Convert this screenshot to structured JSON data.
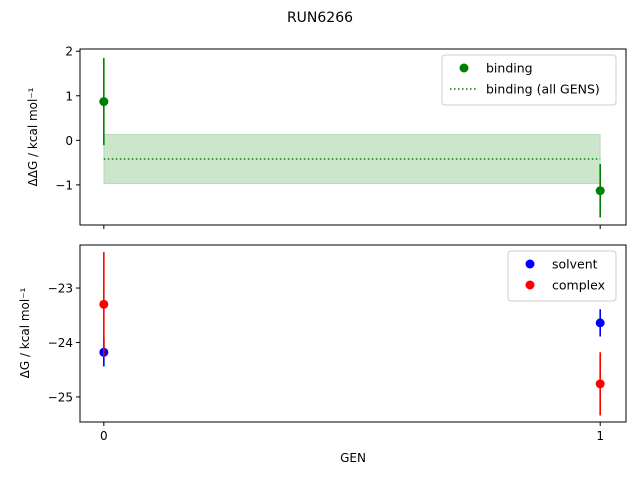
{
  "chart_data": [
    {
      "type": "scatter",
      "title": "RUN6266",
      "xlabel": "",
      "ylabel": "ΔΔG / kcal mol⁻¹",
      "xlim": [
        -0.048,
        1.052
      ],
      "ylim": [
        -1.9,
        2.05
      ],
      "yticks": [
        2,
        1,
        0,
        -1
      ],
      "ytick_labels": [
        "2",
        "1",
        "0",
        "−1"
      ],
      "xticks": [
        0,
        1
      ],
      "grid": false,
      "legend": "top-right",
      "series": [
        {
          "name": "binding",
          "kind": "errorbar",
          "color": "#008000",
          "x": [
            0,
            1
          ],
          "y": [
            0.87,
            -1.13
          ],
          "yerr": [
            0.98,
            0.6
          ]
        },
        {
          "name": "binding (all GENS)",
          "kind": "hline-dotted",
          "color": "#008000",
          "y": -0.42,
          "band": [
            -0.97,
            0.13
          ],
          "x_range": [
            0,
            1
          ]
        }
      ]
    },
    {
      "type": "scatter",
      "xlabel": "GEN",
      "ylabel": "ΔG / kcal mol⁻¹",
      "xlim": [
        -0.048,
        1.052
      ],
      "ylim": [
        -25.46,
        -22.21
      ],
      "yticks": [
        -23,
        -24,
        -25
      ],
      "ytick_labels": [
        "−23",
        "−24",
        "−25"
      ],
      "xticks": [
        0,
        1
      ],
      "xtick_labels": [
        "0",
        "1"
      ],
      "grid": false,
      "legend": "top-right",
      "series": [
        {
          "name": "solvent",
          "color": "#0000ff",
          "x": [
            0,
            1
          ],
          "y": [
            -24.18,
            -23.64
          ],
          "yerr": [
            0.26,
            0.25
          ]
        },
        {
          "name": "complex",
          "color": "#ff0000",
          "x": [
            0,
            1
          ],
          "y": [
            -23.3,
            -24.76
          ],
          "yerr": [
            0.96,
            0.58
          ]
        }
      ]
    }
  ]
}
